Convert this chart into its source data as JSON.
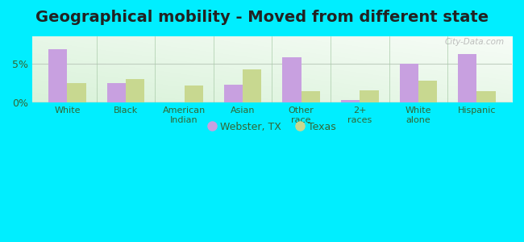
{
  "title": "Geographical mobility - Moved from different state",
  "categories": [
    "White",
    "Black",
    "American\nIndian",
    "Asian",
    "Other\nrace",
    "2+\nraces",
    "White\nalone",
    "Hispanic"
  ],
  "webster_values": [
    6.8,
    2.5,
    0.0,
    2.3,
    5.8,
    0.3,
    5.0,
    6.2
  ],
  "texas_values": [
    2.5,
    3.0,
    2.2,
    4.3,
    1.5,
    1.6,
    2.8,
    1.5
  ],
  "webster_color": "#c8a0e0",
  "texas_color": "#c8d890",
  "background_outer": "#00eeff",
  "ylabel_ticks": [
    "0%",
    "5%"
  ],
  "ytick_vals": [
    0,
    5
  ],
  "ylim": [
    0,
    8.5
  ],
  "legend_webster": "Webster, TX",
  "legend_texas": "Texas",
  "bar_width": 0.32,
  "title_fontsize": 14,
  "title_color": "#222222"
}
